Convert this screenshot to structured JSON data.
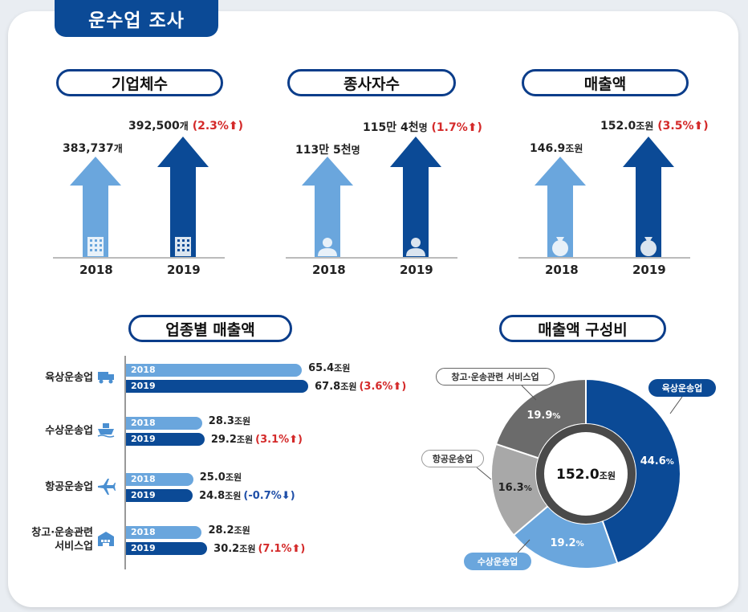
{
  "page": {
    "title": "운수업 조사"
  },
  "colors": {
    "light": "#6aa6dd",
    "dark": "#0b4a96",
    "navy": "#0b3d8a",
    "up": "#d42a2a",
    "down": "#1f4fa8"
  },
  "kpis": [
    {
      "title": "기업체수",
      "y2018_value": "383,737",
      "y2018_unit": "개",
      "y2019_value": "392,500",
      "y2019_unit": "개",
      "change": "(2.3%",
      "icon": "building-icon"
    },
    {
      "title": "종사자수",
      "y2018_value": "113만 5천",
      "y2018_unit": "명",
      "y2019_value": "115만 4천",
      "y2019_unit": "명",
      "change": "(1.7%",
      "icon": "person-icon"
    },
    {
      "title": "매출액",
      "y2018_value": "146.9",
      "y2018_unit": "조원",
      "y2019_value": "152.0",
      "y2019_unit": "조원",
      "change": "(3.5%",
      "icon": "money-bag-icon"
    }
  ],
  "years": [
    "2018",
    "2019"
  ],
  "up_arrow": "⬆)",
  "down_arrow": "⬇)",
  "chart_data": [
    {
      "type": "bar",
      "orientation": "horizontal",
      "title": "업종별 매출액",
      "categories": [
        "육상운송업",
        "수상운송업",
        "항공운송업",
        "창고·운송관련 서비스업"
      ],
      "category_lines": [
        [
          "육상운송업"
        ],
        [
          "수상운송업"
        ],
        [
          "항공운송업"
        ],
        [
          "창고·운송관련",
          "서비스업"
        ]
      ],
      "series": [
        {
          "name": "2018",
          "values": [
            65.4,
            28.3,
            25.0,
            28.2
          ]
        },
        {
          "name": "2019",
          "values": [
            67.8,
            29.2,
            24.8,
            30.2
          ]
        }
      ],
      "value_labels_2018": [
        "65.4",
        "28.3",
        "25.0",
        "28.2"
      ],
      "value_labels_2019": [
        "67.8",
        "29.2",
        "24.8",
        "30.2"
      ],
      "changes": [
        "(3.6%",
        "(3.1%",
        "(-0.7%",
        "(7.1%"
      ],
      "change_dirs": [
        "up",
        "up",
        "down",
        "up"
      ],
      "unit": "조원"
    },
    {
      "type": "pie",
      "title": "매출액 구성비",
      "center_value": "152.0",
      "center_unit": "조원",
      "labels": [
        "육상운송업",
        "수상운송업",
        "항공운송업",
        "창고·운송관련 서비스업"
      ],
      "values": [
        44.6,
        19.2,
        16.3,
        19.9
      ],
      "value_labels": [
        "44.6",
        "19.2",
        "16.3",
        "19.9"
      ],
      "pct_sign": "%",
      "colors": [
        "#0b4a96",
        "#6aa6dd",
        "#a8a8a8",
        "#6b6b6b"
      ]
    }
  ]
}
